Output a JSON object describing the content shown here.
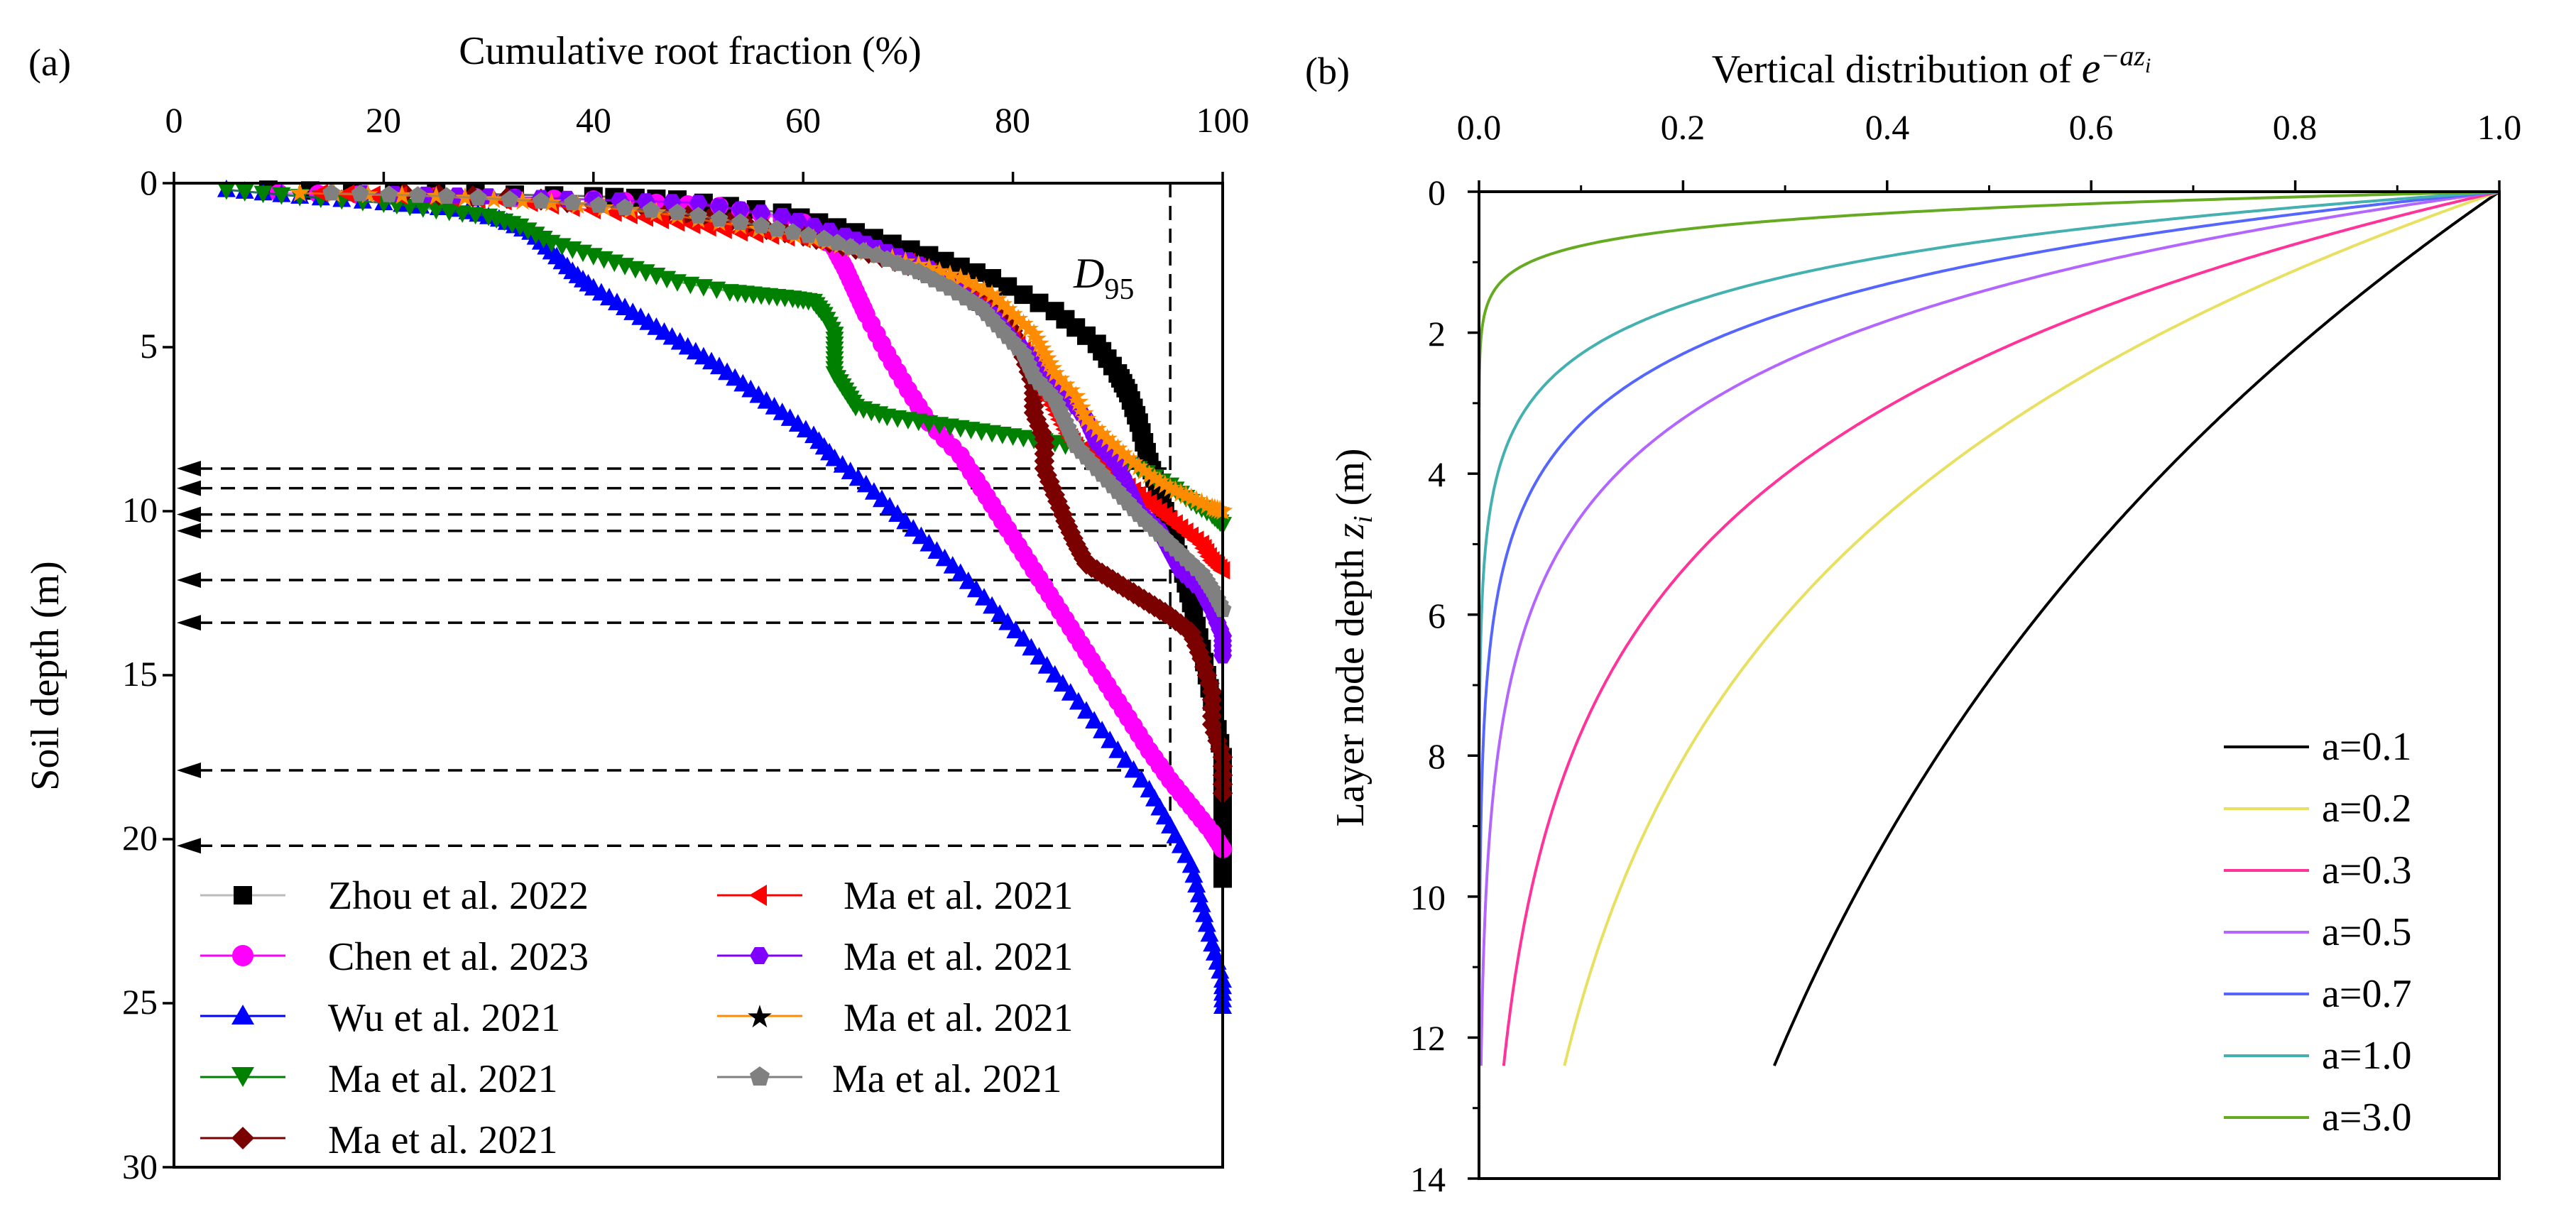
{
  "chart_data": [
    {
      "type": "scatter",
      "panel_label": "(a)",
      "xlabel": "Cumulative root fraction (%)",
      "ylabel": "Soil depth (m)",
      "xlim": [
        0,
        100
      ],
      "ylim": [
        0,
        30
      ],
      "x_ticks": [
        "0",
        "20",
        "40",
        "60",
        "80",
        "100"
      ],
      "y_ticks": [
        "0",
        "5",
        "10",
        "15",
        "20",
        "25",
        "30"
      ],
      "annotation": {
        "main": "D",
        "sub": "95",
        "x_value": 95
      },
      "d95_depths": [
        8.7,
        9.3,
        10.1,
        10.6,
        12.1,
        13.4,
        17.9,
        20.2
      ],
      "series": [
        {
          "name": "Zhou et al. 2022",
          "color": "#000000",
          "marker": "square",
          "points": [
            [
              9,
              0.2
            ],
            [
              25,
              0.3
            ],
            [
              40,
              0.4
            ],
            [
              48,
              0.5
            ],
            [
              58,
              0.9
            ],
            [
              65,
              1.5
            ],
            [
              72,
              2.2
            ],
            [
              78,
              2.9
            ],
            [
              84,
              3.9
            ],
            [
              88,
              4.9
            ],
            [
              90,
              5.8
            ],
            [
              91,
              6.4
            ],
            [
              92,
              7.3
            ],
            [
              93,
              8.5
            ],
            [
              94,
              9.5
            ],
            [
              95,
              10.5
            ],
            [
              96,
              11.6
            ],
            [
              97,
              12.8
            ],
            [
              98,
              14.2
            ],
            [
              99,
              15.8
            ],
            [
              100,
              17.5
            ],
            [
              100,
              19.2
            ],
            [
              100,
              21.2
            ]
          ]
        },
        {
          "name": "Chen et al. 2023",
          "color": "#ff00ff",
          "marker": "circle",
          "points": [
            [
              10,
              0.3
            ],
            [
              25,
              0.4
            ],
            [
              40,
              0.5
            ],
            [
              52,
              0.7
            ],
            [
              60,
              1.2
            ],
            [
              63,
              2.0
            ],
            [
              64,
              2.6
            ],
            [
              65,
              3.3
            ],
            [
              66,
              4.0
            ],
            [
              68,
              5.2
            ],
            [
              70,
              6.3
            ],
            [
              72,
              7.3
            ],
            [
              75,
              8.3
            ],
            [
              77,
              9.3
            ],
            [
              79,
              10.3
            ],
            [
              81,
              11.3
            ],
            [
              83,
              12.3
            ],
            [
              85,
              13.3
            ],
            [
              87,
              14.3
            ],
            [
              89,
              15.3
            ],
            [
              91,
              16.3
            ],
            [
              93,
              17.3
            ],
            [
              95,
              18.2
            ],
            [
              97,
              19.0
            ],
            [
              99,
              19.8
            ],
            [
              100,
              20.3
            ]
          ]
        },
        {
          "name": "Wu et al. 2021",
          "color": "#0000ff",
          "marker": "triangle-up",
          "points": [
            [
              5,
              0.2
            ],
            [
              12,
              0.4
            ],
            [
              20,
              0.6
            ],
            [
              27,
              0.8
            ],
            [
              31,
              1.1
            ],
            [
              34,
              1.5
            ],
            [
              36,
              2.1
            ],
            [
              38,
              2.7
            ],
            [
              40,
              3.2
            ],
            [
              43,
              3.8
            ],
            [
              46,
              4.4
            ],
            [
              49,
              5.0
            ],
            [
              52,
              5.6
            ],
            [
              55,
              6.3
            ],
            [
              58,
              7.0
            ],
            [
              61,
              7.7
            ],
            [
              63,
              8.4
            ],
            [
              66,
              9.2
            ],
            [
              69,
              10.1
            ],
            [
              72,
              11.0
            ],
            [
              75,
              11.9
            ],
            [
              78,
              12.9
            ],
            [
              81,
              13.9
            ],
            [
              84,
              15.0
            ],
            [
              87,
              16.1
            ],
            [
              90,
              17.3
            ],
            [
              93,
              18.5
            ],
            [
              95,
              19.6
            ],
            [
              97,
              20.8
            ],
            [
              98,
              22.0
            ],
            [
              99,
              23.2
            ],
            [
              100,
              24.3
            ],
            [
              100,
              25.1
            ]
          ]
        },
        {
          "name": "Ma et al. 2021",
          "color": "#008000",
          "marker": "triangle-down",
          "points": [
            [
              5,
              0.2
            ],
            [
              12,
              0.4
            ],
            [
              20,
              0.6
            ],
            [
              25,
              0.8
            ],
            [
              30,
              1.0
            ],
            [
              33,
              1.3
            ],
            [
              36,
              1.8
            ],
            [
              40,
              2.2
            ],
            [
              44,
              2.6
            ],
            [
              48,
              3.0
            ],
            [
              53,
              3.3
            ],
            [
              56,
              3.4
            ],
            [
              59,
              3.5
            ],
            [
              61,
              3.6
            ],
            [
              62,
              4.0
            ],
            [
              63,
              4.6
            ],
            [
              63,
              5.2
            ],
            [
              63,
              5.8
            ],
            [
              64,
              6.3
            ],
            [
              65,
              6.8
            ],
            [
              68,
              7.1
            ],
            [
              72,
              7.3
            ],
            [
              76,
              7.5
            ],
            [
              80,
              7.7
            ],
            [
              84,
              7.9
            ],
            [
              88,
              8.2
            ],
            [
              92,
              8.7
            ],
            [
              95,
              9.2
            ],
            [
              97,
              9.7
            ],
            [
              99,
              10.1
            ],
            [
              100,
              10.4
            ]
          ]
        },
        {
          "name": "Ma et al. 2021",
          "color": "#7b0000",
          "marker": "diamond",
          "points": [
            [
              22,
              0.3
            ],
            [
              35,
              0.5
            ],
            [
              45,
              0.8
            ],
            [
              53,
              1.2
            ],
            [
              60,
              1.6
            ],
            [
              65,
              2.0
            ],
            [
              70,
              2.5
            ],
            [
              74,
              3.0
            ],
            [
              78,
              3.7
            ],
            [
              80,
              4.5
            ],
            [
              81,
              5.3
            ],
            [
              82,
              6.2
            ],
            [
              82,
              7.0
            ],
            [
              83,
              7.8
            ],
            [
              83,
              8.7
            ],
            [
              84,
              9.5
            ],
            [
              85,
              10.3
            ],
            [
              86,
              11.0
            ],
            [
              87,
              11.6
            ],
            [
              89,
              12.0
            ],
            [
              91,
              12.4
            ],
            [
              93,
              12.8
            ],
            [
              95,
              13.2
            ],
            [
              97,
              13.7
            ],
            [
              98,
              14.5
            ],
            [
              99,
              15.5
            ],
            [
              99,
              16.5
            ],
            [
              100,
              17.5
            ],
            [
              100,
              18.6
            ]
          ]
        },
        {
          "name": "Ma et al. 2021",
          "color": "#ff0000",
          "marker": "triangle-left",
          "points": [
            [
              14,
              0.3
            ],
            [
              24,
              0.4
            ],
            [
              34,
              0.6
            ],
            [
              42,
              0.9
            ],
            [
              48,
              1.2
            ],
            [
              54,
              1.5
            ],
            [
              60,
              1.7
            ],
            [
              65,
              2.0
            ],
            [
              70,
              2.4
            ],
            [
              74,
              3.0
            ],
            [
              77,
              3.7
            ],
            [
              79,
              4.4
            ],
            [
              81,
              5.1
            ],
            [
              82,
              5.7
            ],
            [
              83,
              6.3
            ],
            [
              84,
              6.9
            ],
            [
              85,
              7.5
            ],
            [
              86,
              8.0
            ],
            [
              88,
              8.5
            ],
            [
              90,
              9.0
            ],
            [
              92,
              9.5
            ],
            [
              94,
              10.0
            ],
            [
              96,
              10.5
            ],
            [
              98,
              11.0
            ],
            [
              99,
              11.5
            ],
            [
              100,
              11.8
            ]
          ]
        },
        {
          "name": "Ma et al. 2021",
          "color": "#8000ff",
          "marker": "hexagon",
          "points": [
            [
              18,
              0.3
            ],
            [
              30,
              0.4
            ],
            [
              40,
              0.5
            ],
            [
              50,
              0.6
            ],
            [
              58,
              1.0
            ],
            [
              64,
              1.6
            ],
            [
              68,
              2.1
            ],
            [
              72,
              2.6
            ],
            [
              75,
              3.3
            ],
            [
              78,
              4.0
            ],
            [
              80,
              4.8
            ],
            [
              83,
              5.6
            ],
            [
              85,
              6.4
            ],
            [
              87,
              7.2
            ],
            [
              88,
              7.9
            ],
            [
              90,
              8.6
            ],
            [
              91,
              9.3
            ],
            [
              92,
              10.0
            ],
            [
              94,
              10.6
            ],
            [
              95,
              11.2
            ],
            [
              96,
              11.8
            ],
            [
              98,
              12.4
            ],
            [
              99,
              13.0
            ],
            [
              100,
              13.8
            ],
            [
              100,
              14.4
            ]
          ]
        },
        {
          "name": "Ma et al. 2021",
          "color": "#ff8c00",
          "marker": "star",
          "points": [
            [
              12,
              0.3
            ],
            [
              25,
              0.4
            ],
            [
              36,
              0.6
            ],
            [
              46,
              0.9
            ],
            [
              54,
              1.3
            ],
            [
              61,
              1.7
            ],
            [
              66,
              2.1
            ],
            [
              71,
              2.5
            ],
            [
              75,
              2.9
            ],
            [
              78,
              3.4
            ],
            [
              80,
              4.0
            ],
            [
              82,
              4.6
            ],
            [
              83,
              5.2
            ],
            [
              84,
              5.8
            ],
            [
              86,
              6.5
            ],
            [
              87,
              7.2
            ],
            [
              89,
              7.8
            ],
            [
              91,
              8.4
            ],
            [
              93,
              8.9
            ],
            [
              95,
              9.3
            ],
            [
              97,
              9.6
            ],
            [
              99,
              9.9
            ],
            [
              100,
              10.0
            ]
          ]
        },
        {
          "name": "Ma et al. 2021",
          "color": "#808080",
          "marker": "pentagon",
          "points": [
            [
              15,
              0.3
            ],
            [
              26,
              0.4
            ],
            [
              38,
              0.6
            ],
            [
              48,
              0.9
            ],
            [
              56,
              1.3
            ],
            [
              62,
              1.7
            ],
            [
              67,
              2.2
            ],
            [
              71,
              2.7
            ],
            [
              74,
              3.2
            ],
            [
              77,
              3.8
            ],
            [
              79,
              4.5
            ],
            [
              81,
              5.2
            ],
            [
              82,
              5.9
            ],
            [
              84,
              6.6
            ],
            [
              85,
              7.3
            ],
            [
              86,
              8.0
            ],
            [
              88,
              8.7
            ],
            [
              90,
              9.4
            ],
            [
              92,
              10.1
            ],
            [
              94,
              10.7
            ],
            [
              96,
              11.3
            ],
            [
              98,
              11.9
            ],
            [
              99,
              12.4
            ],
            [
              100,
              13.0
            ]
          ]
        }
      ]
    },
    {
      "type": "line",
      "panel_label": "(b)",
      "title_text": "Vertical distribution of ",
      "title_base": "e",
      "title_sup": "−az",
      "title_sup_sub": "i",
      "xlabel": "",
      "ylabel_text": "Layer node depth ",
      "ylabel_var": "z",
      "ylabel_sub": "i",
      "ylabel_unit": " (m)",
      "xlim": [
        0,
        1.0
      ],
      "ylim": [
        0,
        14
      ],
      "x_ticks": [
        "0.0",
        "0.2",
        "0.4",
        "0.6",
        "0.8",
        "1.0"
      ],
      "y_ticks": [
        "0",
        "2",
        "4",
        "6",
        "8",
        "10",
        "12",
        "14"
      ],
      "function": "x = exp(-a * z), z from 0 to 12.4",
      "z_max": 12.4,
      "legend": [
        "a=0.1",
        "a=0.2",
        "a=0.3",
        "a=0.5",
        "a=0.7",
        "a=1.0",
        "a=3.0"
      ],
      "series": [
        {
          "name": "a=0.1",
          "a": 0.1,
          "color": "#000000"
        },
        {
          "name": "a=0.2",
          "a": 0.2,
          "color": "#e8e060"
        },
        {
          "name": "a=0.3",
          "a": 0.3,
          "color": "#ff3399"
        },
        {
          "name": "a=0.5",
          "a": 0.5,
          "color": "#b266ff"
        },
        {
          "name": "a=0.7",
          "a": 0.7,
          "color": "#5566ff"
        },
        {
          "name": "a=1.0",
          "a": 1.0,
          "color": "#44b0b0"
        },
        {
          "name": "a=3.0",
          "a": 3.0,
          "color": "#66aa22"
        }
      ]
    }
  ]
}
